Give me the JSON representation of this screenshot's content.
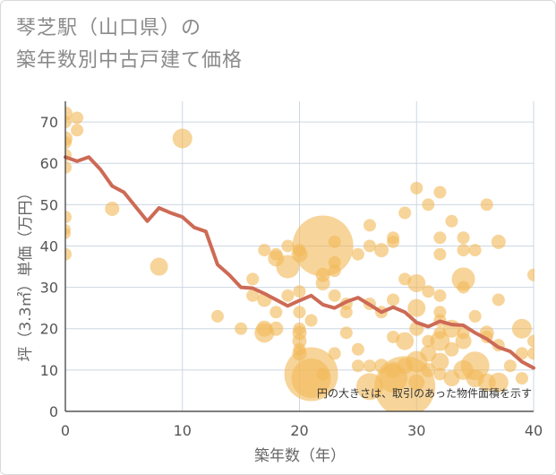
{
  "title_lines": [
    "琴芝駅（山口県）の",
    "築年数別中古戸建て価格"
  ],
  "chart_data": {
    "type": "scatter",
    "xlabel": "築年数（年）",
    "ylabel": "坪（3.3㎡）単価（万円）",
    "xlim": [
      0,
      40
    ],
    "ylim": [
      0,
      75
    ],
    "xticks": [
      0,
      10,
      20,
      30,
      40
    ],
    "yticks": [
      0,
      10,
      20,
      30,
      40,
      50,
      60,
      70
    ],
    "grid": true,
    "note": "円の大きさは、取引のあった物件面積を示す",
    "colors": {
      "bubble": "#f2b95a",
      "line": "#cd6a55",
      "grid": "#ccd7e4",
      "axis": "#333333"
    },
    "bubbles": [
      {
        "x": 0,
        "y": 72,
        "s": 8
      },
      {
        "x": 0,
        "y": 70,
        "s": 7
      },
      {
        "x": 0,
        "y": 66,
        "s": 8
      },
      {
        "x": 0,
        "y": 65,
        "s": 7
      },
      {
        "x": 0,
        "y": 62,
        "s": 7
      },
      {
        "x": 0,
        "y": 59,
        "s": 7
      },
      {
        "x": 0,
        "y": 47,
        "s": 7
      },
      {
        "x": 0,
        "y": 44,
        "s": 6
      },
      {
        "x": 0,
        "y": 43,
        "s": 6
      },
      {
        "x": 0,
        "y": 38,
        "s": 7
      },
      {
        "x": 1,
        "y": 71,
        "s": 7
      },
      {
        "x": 1,
        "y": 68,
        "s": 7
      },
      {
        "x": 4,
        "y": 49,
        "s": 8
      },
      {
        "x": 8,
        "y": 35,
        "s": 10
      },
      {
        "x": 10,
        "y": 66,
        "s": 11
      },
      {
        "x": 13,
        "y": 23,
        "s": 7
      },
      {
        "x": 15,
        "y": 20,
        "s": 7
      },
      {
        "x": 16,
        "y": 32,
        "s": 7
      },
      {
        "x": 16,
        "y": 28,
        "s": 7
      },
      {
        "x": 17,
        "y": 39,
        "s": 7
      },
      {
        "x": 17,
        "y": 27,
        "s": 8
      },
      {
        "x": 17,
        "y": 20,
        "s": 9
      },
      {
        "x": 17,
        "y": 19,
        "s": 11
      },
      {
        "x": 18,
        "y": 38,
        "s": 7
      },
      {
        "x": 18,
        "y": 37,
        "s": 9
      },
      {
        "x": 18,
        "y": 24,
        "s": 7
      },
      {
        "x": 18,
        "y": 20,
        "s": 8
      },
      {
        "x": 19,
        "y": 40,
        "s": 7
      },
      {
        "x": 19,
        "y": 35,
        "s": 13
      },
      {
        "x": 19,
        "y": 28,
        "s": 7
      },
      {
        "x": 20,
        "y": 39,
        "s": 7
      },
      {
        "x": 20,
        "y": 38,
        "s": 9
      },
      {
        "x": 20,
        "y": 29,
        "s": 7
      },
      {
        "x": 20,
        "y": 24,
        "s": 7
      },
      {
        "x": 20,
        "y": 20,
        "s": 7
      },
      {
        "x": 20,
        "y": 19,
        "s": 8
      },
      {
        "x": 20,
        "y": 17,
        "s": 8
      },
      {
        "x": 20,
        "y": 15,
        "s": 7
      },
      {
        "x": 20,
        "y": 14,
        "s": 8
      },
      {
        "x": 21,
        "y": 22,
        "s": 7
      },
      {
        "x": 21,
        "y": 9,
        "s": 30
      },
      {
        "x": 21,
        "y": 8,
        "s": 22
      },
      {
        "x": 22,
        "y": 40,
        "s": 34
      },
      {
        "x": 22,
        "y": 33,
        "s": 8
      },
      {
        "x": 22,
        "y": 31,
        "s": 8
      },
      {
        "x": 22,
        "y": 9,
        "s": 7
      },
      {
        "x": 23,
        "y": 41,
        "s": 7
      },
      {
        "x": 23,
        "y": 36,
        "s": 7
      },
      {
        "x": 23,
        "y": 34,
        "s": 7
      },
      {
        "x": 23,
        "y": 28,
        "s": 7
      },
      {
        "x": 23,
        "y": 14,
        "s": 7
      },
      {
        "x": 24,
        "y": 26,
        "s": 7
      },
      {
        "x": 24,
        "y": 24,
        "s": 7
      },
      {
        "x": 24,
        "y": 19,
        "s": 7
      },
      {
        "x": 25,
        "y": 38,
        "s": 7
      },
      {
        "x": 25,
        "y": 15,
        "s": 7
      },
      {
        "x": 25,
        "y": 11,
        "s": 7
      },
      {
        "x": 26,
        "y": 45,
        "s": 7
      },
      {
        "x": 26,
        "y": 40,
        "s": 7
      },
      {
        "x": 26,
        "y": 26,
        "s": 7
      },
      {
        "x": 26,
        "y": 11,
        "s": 7
      },
      {
        "x": 26,
        "y": 6,
        "s": 15
      },
      {
        "x": 27,
        "y": 39,
        "s": 8
      },
      {
        "x": 27,
        "y": 24,
        "s": 7
      },
      {
        "x": 27,
        "y": 11,
        "s": 8
      },
      {
        "x": 28,
        "y": 42,
        "s": 7
      },
      {
        "x": 28,
        "y": 41,
        "s": 7
      },
      {
        "x": 28,
        "y": 27,
        "s": 7
      },
      {
        "x": 28,
        "y": 18,
        "s": 7
      },
      {
        "x": 28,
        "y": 8,
        "s": 16
      },
      {
        "x": 28,
        "y": 10,
        "s": 9
      },
      {
        "x": 29,
        "y": 48,
        "s": 7
      },
      {
        "x": 29,
        "y": 32,
        "s": 7
      },
      {
        "x": 29,
        "y": 17,
        "s": 10
      },
      {
        "x": 29,
        "y": 11,
        "s": 9
      },
      {
        "x": 29,
        "y": 6,
        "s": 34
      },
      {
        "x": 30,
        "y": 54,
        "s": 7
      },
      {
        "x": 30,
        "y": 31,
        "s": 10
      },
      {
        "x": 30,
        "y": 25,
        "s": 10
      },
      {
        "x": 30,
        "y": 20,
        "s": 8
      },
      {
        "x": 30,
        "y": 12,
        "s": 12
      },
      {
        "x": 30,
        "y": 7,
        "s": 9
      },
      {
        "x": 31,
        "y": 50,
        "s": 7
      },
      {
        "x": 31,
        "y": 29,
        "s": 7
      },
      {
        "x": 31,
        "y": 17,
        "s": 7
      },
      {
        "x": 31,
        "y": 14,
        "s": 9
      },
      {
        "x": 31,
        "y": 10,
        "s": 8
      },
      {
        "x": 32,
        "y": 53,
        "s": 7
      },
      {
        "x": 32,
        "y": 42,
        "s": 7
      },
      {
        "x": 32,
        "y": 38,
        "s": 7
      },
      {
        "x": 32,
        "y": 28,
        "s": 7
      },
      {
        "x": 32,
        "y": 24,
        "s": 7
      },
      {
        "x": 32,
        "y": 22,
        "s": 7
      },
      {
        "x": 32,
        "y": 19,
        "s": 7
      },
      {
        "x": 32,
        "y": 17,
        "s": 11
      },
      {
        "x": 32,
        "y": 12,
        "s": 10
      },
      {
        "x": 32,
        "y": 9,
        "s": 7
      },
      {
        "x": 33,
        "y": 46,
        "s": 7
      },
      {
        "x": 33,
        "y": 20,
        "s": 10
      },
      {
        "x": 33,
        "y": 15,
        "s": 8
      },
      {
        "x": 33,
        "y": 8,
        "s": 9
      },
      {
        "x": 34,
        "y": 42,
        "s": 7
      },
      {
        "x": 34,
        "y": 39,
        "s": 7
      },
      {
        "x": 34,
        "y": 32,
        "s": 13
      },
      {
        "x": 34,
        "y": 30,
        "s": 7
      },
      {
        "x": 34,
        "y": 19,
        "s": 7
      },
      {
        "x": 34,
        "y": 17,
        "s": 9
      },
      {
        "x": 34,
        "y": 10,
        "s": 11
      },
      {
        "x": 35,
        "y": 39,
        "s": 7
      },
      {
        "x": 35,
        "y": 23,
        "s": 7
      },
      {
        "x": 35,
        "y": 11,
        "s": 16
      },
      {
        "x": 35,
        "y": 8,
        "s": 10
      },
      {
        "x": 36,
        "y": 50,
        "s": 7
      },
      {
        "x": 36,
        "y": 19,
        "s": 8
      },
      {
        "x": 36,
        "y": 18,
        "s": 7
      },
      {
        "x": 36,
        "y": 7,
        "s": 10
      },
      {
        "x": 37,
        "y": 41,
        "s": 8
      },
      {
        "x": 37,
        "y": 27,
        "s": 7
      },
      {
        "x": 37,
        "y": 16,
        "s": 7
      },
      {
        "x": 37,
        "y": 7,
        "s": 11
      },
      {
        "x": 38,
        "y": 11,
        "s": 7
      },
      {
        "x": 39,
        "y": 20,
        "s": 11
      },
      {
        "x": 39,
        "y": 14,
        "s": 7
      },
      {
        "x": 39,
        "y": 8,
        "s": 7
      },
      {
        "x": 40,
        "y": 33,
        "s": 7
      },
      {
        "x": 40,
        "y": 17,
        "s": 7
      },
      {
        "x": 40,
        "y": 14,
        "s": 7
      }
    ],
    "trend": {
      "x": [
        0,
        1,
        2,
        3,
        4,
        5,
        6,
        7,
        8,
        9,
        10,
        11,
        12,
        13,
        14,
        15,
        16,
        17,
        18,
        19,
        20,
        21,
        22,
        23,
        24,
        25,
        26,
        27,
        28,
        29,
        30,
        31,
        32,
        33,
        34,
        35,
        36,
        37,
        38,
        39,
        40
      ],
      "y": [
        61.5,
        60.5,
        61.5,
        58.5,
        54.5,
        53,
        49.5,
        46,
        49.2,
        48,
        47,
        44.5,
        43.5,
        35.5,
        33,
        30,
        29.8,
        28.5,
        27,
        25.5,
        26.8,
        28,
        25.8,
        25,
        26.5,
        27.5,
        25.8,
        24,
        25.2,
        24,
        21.5,
        20.5,
        21.8,
        21,
        20.8,
        19,
        17.5,
        15.5,
        14.5,
        12,
        10.5
      ]
    }
  }
}
